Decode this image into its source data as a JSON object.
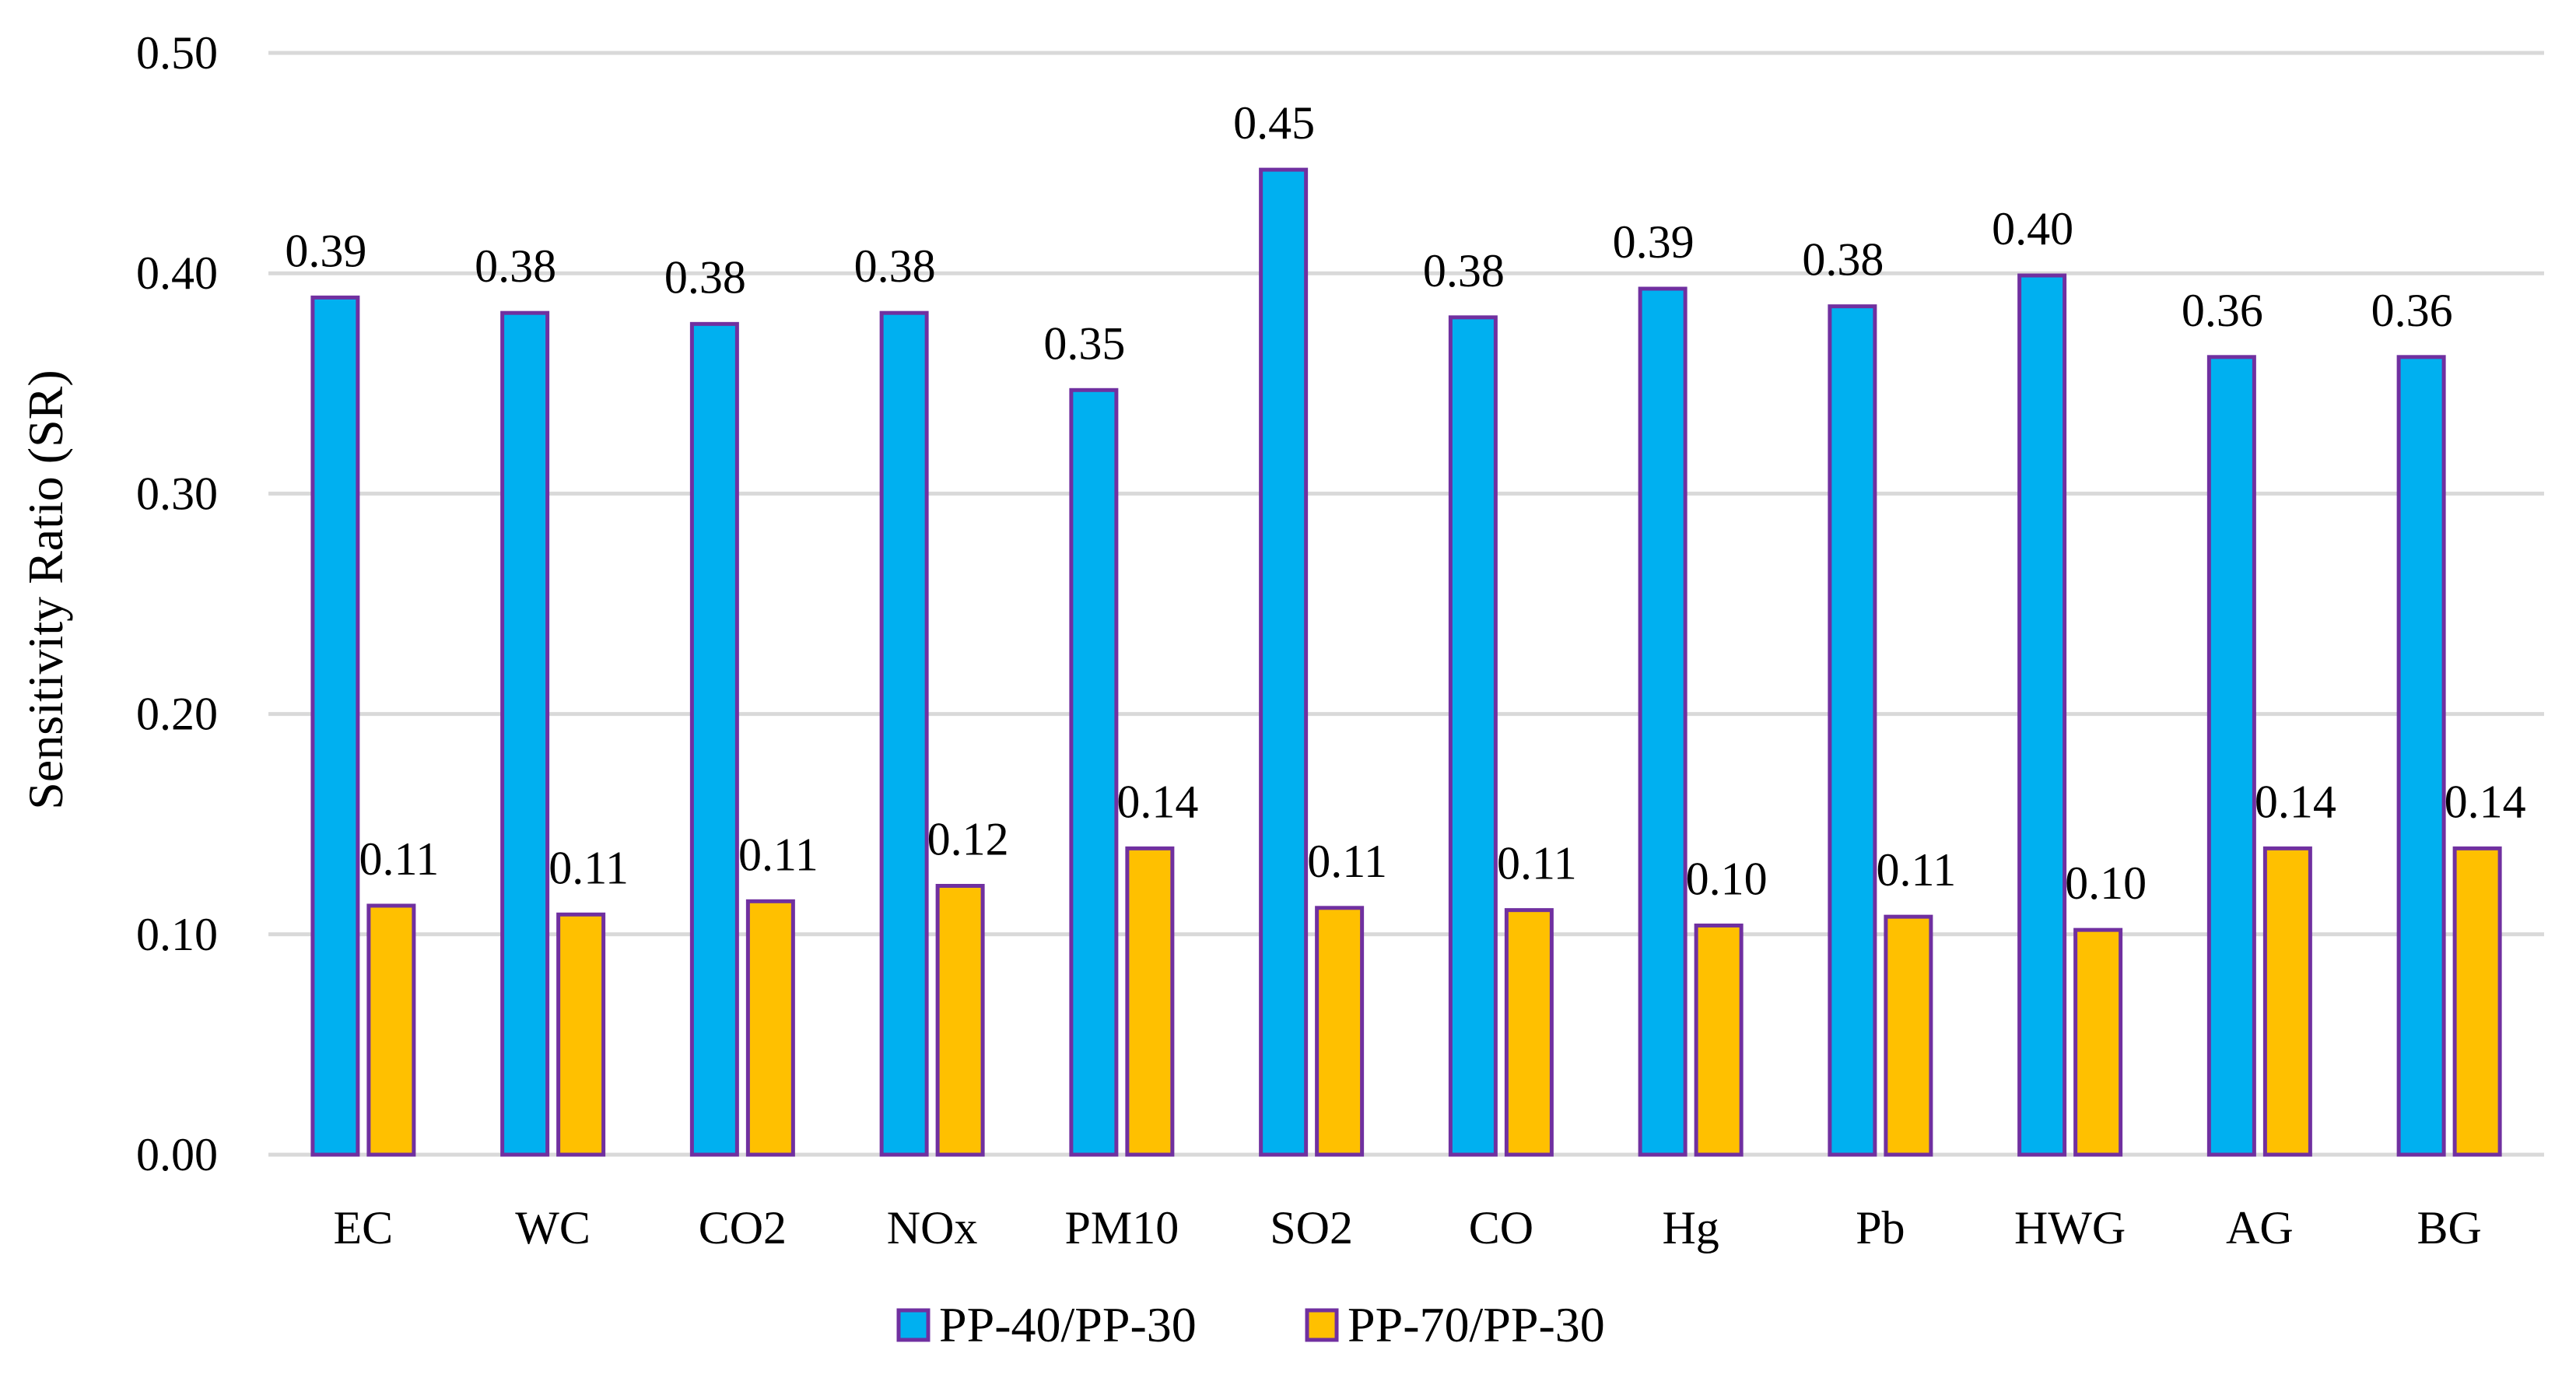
{
  "chart_data": {
    "type": "bar",
    "categories": [
      "EC",
      "WC",
      "CO2",
      "NOx",
      "PM10",
      "SO2",
      "CO",
      "Hg",
      "Pb",
      "HWG",
      "AG",
      "BG"
    ],
    "series": [
      {
        "name": "PP-40/PP-30",
        "color": "#00B0F0",
        "values": [
          0.389,
          0.382,
          0.377,
          0.382,
          0.347,
          0.447,
          0.38,
          0.393,
          0.385,
          0.399,
          0.362,
          0.362
        ],
        "labels": [
          "0.39",
          "0.38",
          "0.38",
          "0.38",
          "0.35",
          "0.45",
          "0.38",
          "0.39",
          "0.38",
          "0.40",
          "0.36",
          "0.36"
        ]
      },
      {
        "name": "PP-70/PP-30",
        "color": "#FFC000",
        "values": [
          0.113,
          0.109,
          0.115,
          0.122,
          0.139,
          0.112,
          0.111,
          0.104,
          0.108,
          0.102,
          0.139,
          0.139
        ],
        "labels": [
          "0.11",
          "0.11",
          "0.11",
          "0.12",
          "0.14",
          "0.11",
          "0.11",
          "0.10",
          "0.11",
          "0.10",
          "0.14",
          "0.14"
        ]
      }
    ],
    "bar_outline_color": "#7030A0",
    "ylabel": "Sensitivity Ratio (SR)",
    "xlabel": "",
    "ylim": [
      0,
      0.5
    ],
    "yticks": [
      "0.00",
      "0.10",
      "0.20",
      "0.30",
      "0.40",
      "0.50"
    ],
    "grid": true,
    "legend_position": "bottom"
  }
}
